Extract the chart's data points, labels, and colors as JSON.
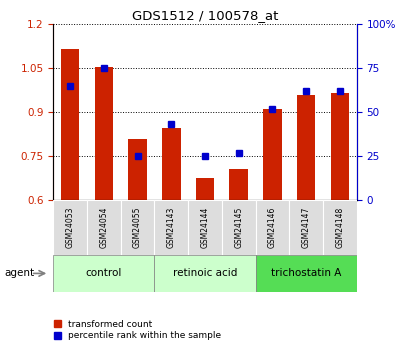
{
  "title": "GDS1512 / 100578_at",
  "samples": [
    "GSM24053",
    "GSM24054",
    "GSM24055",
    "GSM24143",
    "GSM24144",
    "GSM24145",
    "GSM24146",
    "GSM24147",
    "GSM24148"
  ],
  "transformed_count": [
    1.115,
    1.055,
    0.81,
    0.845,
    0.675,
    0.705,
    0.91,
    0.96,
    0.965
  ],
  "percentile_rank": [
    65,
    75,
    25,
    43,
    25,
    27,
    52,
    62,
    62
  ],
  "ylim_left": [
    0.6,
    1.2
  ],
  "ylim_right": [
    0,
    100
  ],
  "yticks_left": [
    0.6,
    0.75,
    0.9,
    1.05,
    1.2
  ],
  "ytick_labels_left": [
    "0.6",
    "0.75",
    "0.9",
    "1.05",
    "1.2"
  ],
  "yticks_right": [
    0,
    25,
    50,
    75,
    100
  ],
  "ytick_labels_right": [
    "0",
    "25",
    "50",
    "75",
    "100%"
  ],
  "bar_color": "#cc2200",
  "dot_color": "#0000cc",
  "groups": [
    {
      "label": "control",
      "start": 0,
      "end": 2,
      "color": "#ccffcc"
    },
    {
      "label": "retinoic acid",
      "start": 3,
      "end": 5,
      "color": "#ccffcc"
    },
    {
      "label": "trichostatin A",
      "start": 6,
      "end": 8,
      "color": "#55dd55"
    }
  ],
  "sample_box_color": "#dddddd",
  "agent_label": "agent",
  "legend_bar_label": "transformed count",
  "legend_dot_label": "percentile rank within the sample",
  "bar_bottom": 0.6
}
